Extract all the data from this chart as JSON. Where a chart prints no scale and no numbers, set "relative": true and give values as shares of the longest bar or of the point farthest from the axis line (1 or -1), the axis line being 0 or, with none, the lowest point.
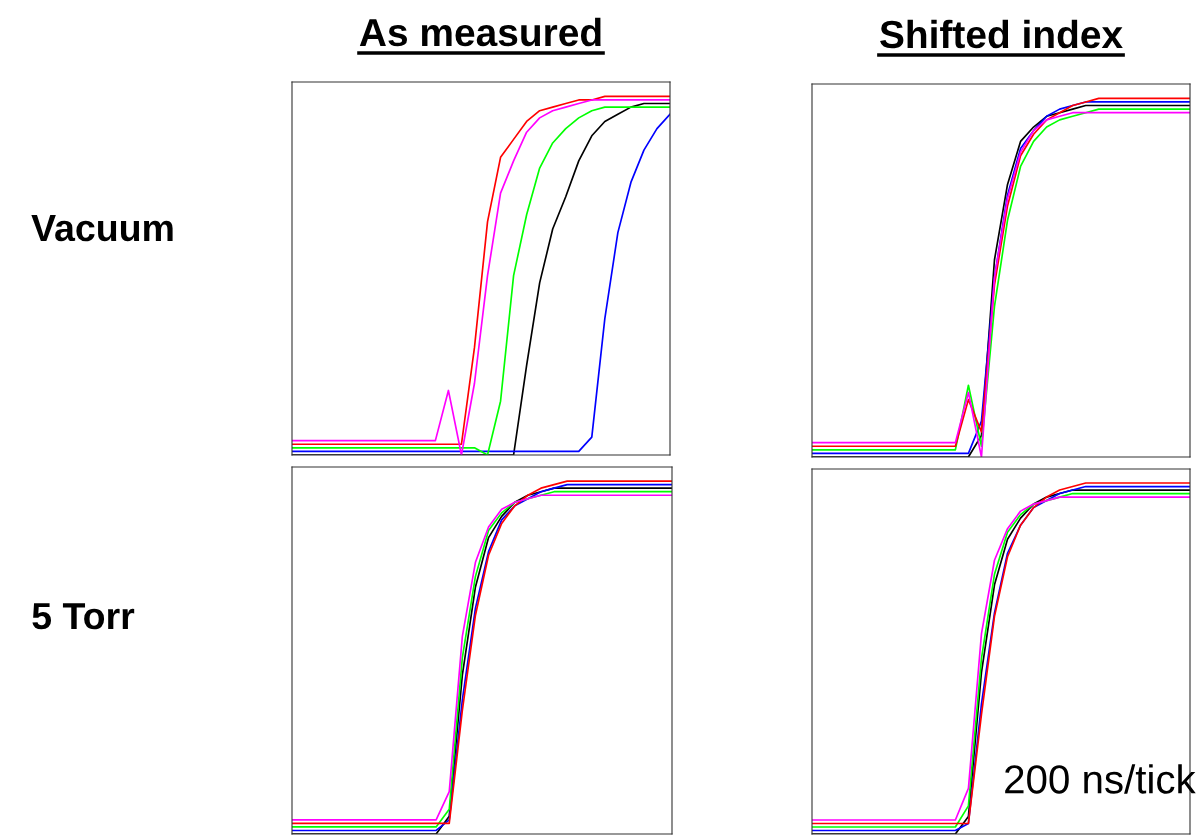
{
  "chart_data": [
    {
      "type": "line",
      "title": "As measured",
      "ylabel": "Vacuum",
      "relative": true,
      "legend": false,
      "grid": false,
      "categories": [
        null,
        null,
        null,
        null,
        null,
        null,
        null,
        null,
        null,
        null,
        null,
        null,
        null,
        null,
        null,
        null,
        null,
        null,
        null,
        null,
        null,
        null,
        null,
        null,
        null,
        null,
        null,
        null,
        null,
        null
      ],
      "series": [
        {
          "color": "#000000",
          "values": [
            0,
            0,
            0,
            0,
            0,
            0,
            0,
            0,
            0,
            0,
            0,
            0,
            0,
            0,
            0,
            0,
            0,
            0,
            0.25,
            0.48,
            0.63,
            0.72,
            0.82,
            0.89,
            0.93,
            0.95,
            0.97,
            0.98,
            0.98,
            0.98
          ]
        },
        {
          "color": "#0000ff",
          "values": [
            0.01,
            0.01,
            0.01,
            0.01,
            0.01,
            0.01,
            0.01,
            0.01,
            0.01,
            0.01,
            0.01,
            0.01,
            0.01,
            0.01,
            0.01,
            0.01,
            0.01,
            0.01,
            0.01,
            0.01,
            0.01,
            0.01,
            0.01,
            0.05,
            0.38,
            0.62,
            0.76,
            0.85,
            0.91,
            0.95
          ]
        },
        {
          "color": "#00ff00",
          "values": [
            0.02,
            0.02,
            0.02,
            0.02,
            0.02,
            0.02,
            0.02,
            0.02,
            0.02,
            0.02,
            0.02,
            0.02,
            0.02,
            0.02,
            0.02,
            0,
            0.15,
            0.5,
            0.67,
            0.8,
            0.87,
            0.91,
            0.94,
            0.96,
            0.97,
            0.97,
            0.97,
            0.97,
            0.97,
            0.97
          ]
        },
        {
          "color": "#ff0000",
          "values": [
            0.03,
            0.03,
            0.03,
            0.03,
            0.03,
            0.03,
            0.03,
            0.03,
            0.03,
            0.03,
            0.03,
            0.03,
            0.03,
            0.03,
            0.3,
            0.65,
            0.83,
            0.88,
            0.93,
            0.96,
            0.97,
            0.98,
            0.99,
            0.99,
            1,
            1,
            1,
            1,
            1,
            1
          ]
        },
        {
          "color": "#ff00ff",
          "values": [
            0.04,
            0.04,
            0.04,
            0.04,
            0.04,
            0.04,
            0.04,
            0.04,
            0.04,
            0.04,
            0.04,
            0.04,
            0.18,
            0,
            0.2,
            0.5,
            0.73,
            0.82,
            0.9,
            0.94,
            0.96,
            0.97,
            0.98,
            0.99,
            0.99,
            0.99,
            0.99,
            0.99,
            0.99,
            0.99
          ]
        }
      ]
    },
    {
      "type": "line",
      "title": "Shifted index",
      "relative": true,
      "legend": false,
      "grid": false,
      "categories": [
        null,
        null,
        null,
        null,
        null,
        null,
        null,
        null,
        null,
        null,
        null,
        null,
        null,
        null,
        null,
        null,
        null,
        null,
        null,
        null,
        null,
        null,
        null,
        null,
        null,
        null,
        null,
        null,
        null,
        null
      ],
      "series": [
        {
          "color": "#000000",
          "values": [
            0,
            0,
            0,
            0,
            0,
            0,
            0,
            0,
            0,
            0,
            0,
            0,
            0,
            0.06,
            0.55,
            0.76,
            0.88,
            0.92,
            0.95,
            0.96,
            0.97,
            0.98,
            0.98,
            0.98,
            0.98,
            0.98,
            0.98,
            0.98,
            0.98,
            0.98
          ]
        },
        {
          "color": "#0000ff",
          "values": [
            0.01,
            0.01,
            0.01,
            0.01,
            0.01,
            0.01,
            0.01,
            0.01,
            0.01,
            0.01,
            0.01,
            0.01,
            0.01,
            0.1,
            0.5,
            0.73,
            0.86,
            0.91,
            0.95,
            0.97,
            0.98,
            0.99,
            0.99,
            0.99,
            0.99,
            0.99,
            0.99,
            0.99,
            0.99,
            0.99
          ]
        },
        {
          "color": "#00ff00",
          "values": [
            0.02,
            0.02,
            0.02,
            0.02,
            0.02,
            0.02,
            0.02,
            0.02,
            0.02,
            0.02,
            0.02,
            0.02,
            0.2,
            0.03,
            0.42,
            0.66,
            0.81,
            0.88,
            0.92,
            0.94,
            0.95,
            0.96,
            0.97,
            0.97,
            0.97,
            0.97,
            0.97,
            0.97,
            0.97,
            0.97
          ]
        },
        {
          "color": "#ff0000",
          "values": [
            0.03,
            0.03,
            0.03,
            0.03,
            0.03,
            0.03,
            0.03,
            0.03,
            0.03,
            0.03,
            0.03,
            0.03,
            0.16,
            0.07,
            0.48,
            0.7,
            0.84,
            0.9,
            0.94,
            0.96,
            0.98,
            0.99,
            1,
            1,
            1,
            1,
            1,
            1,
            1,
            1
          ]
        },
        {
          "color": "#ff00ff",
          "values": [
            0.04,
            0.04,
            0.04,
            0.04,
            0.04,
            0.04,
            0.04,
            0.04,
            0.04,
            0.04,
            0.04,
            0.04,
            0.18,
            0,
            0.5,
            0.72,
            0.85,
            0.91,
            0.94,
            0.95,
            0.96,
            0.96,
            0.96,
            0.96,
            0.96,
            0.96,
            0.96,
            0.96,
            0.96,
            0.96
          ]
        }
      ]
    },
    {
      "type": "line",
      "ylabel": "5 Torr",
      "relative": true,
      "legend": false,
      "grid": false,
      "categories": [
        null,
        null,
        null,
        null,
        null,
        null,
        null,
        null,
        null,
        null,
        null,
        null,
        null,
        null,
        null,
        null,
        null,
        null,
        null,
        null,
        null,
        null,
        null,
        null,
        null,
        null,
        null,
        null,
        null,
        null
      ],
      "series": [
        {
          "color": "#000000",
          "values": [
            0,
            0,
            0,
            0,
            0,
            0,
            0,
            0,
            0,
            0,
            0,
            0,
            0.05,
            0.45,
            0.7,
            0.84,
            0.9,
            0.94,
            0.96,
            0.97,
            0.98,
            0.98,
            0.98,
            0.98,
            0.98,
            0.98,
            0.98,
            0.98,
            0.98,
            0.98
          ]
        },
        {
          "color": "#0000ff",
          "values": [
            0.01,
            0.01,
            0.01,
            0.01,
            0.01,
            0.01,
            0.01,
            0.01,
            0.01,
            0.01,
            0.01,
            0.01,
            0.04,
            0.38,
            0.64,
            0.8,
            0.89,
            0.93,
            0.95,
            0.97,
            0.98,
            0.99,
            0.99,
            0.99,
            0.99,
            0.99,
            0.99,
            0.99,
            0.99,
            0.99
          ]
        },
        {
          "color": "#00ff00",
          "values": [
            0.02,
            0.02,
            0.02,
            0.02,
            0.02,
            0.02,
            0.02,
            0.02,
            0.02,
            0.02,
            0.02,
            0.02,
            0.07,
            0.5,
            0.73,
            0.86,
            0.91,
            0.94,
            0.95,
            0.96,
            0.97,
            0.97,
            0.97,
            0.97,
            0.97,
            0.97,
            0.97,
            0.97,
            0.97,
            0.97
          ]
        },
        {
          "color": "#ff0000",
          "values": [
            0.03,
            0.03,
            0.03,
            0.03,
            0.03,
            0.03,
            0.03,
            0.03,
            0.03,
            0.03,
            0.03,
            0.03,
            0.03,
            0.35,
            0.62,
            0.79,
            0.88,
            0.93,
            0.96,
            0.98,
            0.99,
            1,
            1,
            1,
            1,
            1,
            1,
            1,
            1,
            1
          ]
        },
        {
          "color": "#ff00ff",
          "values": [
            0.04,
            0.04,
            0.04,
            0.04,
            0.04,
            0.04,
            0.04,
            0.04,
            0.04,
            0.04,
            0.04,
            0.04,
            0.12,
            0.56,
            0.77,
            0.87,
            0.92,
            0.94,
            0.95,
            0.96,
            0.96,
            0.96,
            0.96,
            0.96,
            0.96,
            0.96,
            0.96,
            0.96,
            0.96,
            0.96
          ]
        }
      ]
    },
    {
      "type": "line",
      "relative": true,
      "legend": false,
      "grid": false,
      "annotations": [
        "200 ns/tick"
      ],
      "categories": [
        null,
        null,
        null,
        null,
        null,
        null,
        null,
        null,
        null,
        null,
        null,
        null,
        null,
        null,
        null,
        null,
        null,
        null,
        null,
        null,
        null,
        null,
        null,
        null,
        null,
        null,
        null,
        null,
        null,
        null
      ],
      "series": [
        {
          "color": "#000000",
          "values": [
            0,
            0,
            0,
            0,
            0,
            0,
            0,
            0,
            0,
            0,
            0,
            0,
            0.05,
            0.46,
            0.71,
            0.84,
            0.9,
            0.94,
            0.96,
            0.97,
            0.98,
            0.98,
            0.98,
            0.98,
            0.98,
            0.98,
            0.98,
            0.98,
            0.98,
            0.98
          ]
        },
        {
          "color": "#0000ff",
          "values": [
            0.01,
            0.01,
            0.01,
            0.01,
            0.01,
            0.01,
            0.01,
            0.01,
            0.01,
            0.01,
            0.01,
            0.01,
            0.03,
            0.37,
            0.63,
            0.8,
            0.88,
            0.93,
            0.95,
            0.97,
            0.98,
            0.99,
            0.99,
            0.99,
            0.99,
            0.99,
            0.99,
            0.99,
            0.99,
            0.99
          ]
        },
        {
          "color": "#00ff00",
          "values": [
            0.02,
            0.02,
            0.02,
            0.02,
            0.02,
            0.02,
            0.02,
            0.02,
            0.02,
            0.02,
            0.02,
            0.02,
            0.08,
            0.5,
            0.74,
            0.86,
            0.91,
            0.94,
            0.95,
            0.96,
            0.97,
            0.97,
            0.97,
            0.97,
            0.97,
            0.97,
            0.97,
            0.97,
            0.97,
            0.97
          ]
        },
        {
          "color": "#ff0000",
          "values": [
            0.03,
            0.03,
            0.03,
            0.03,
            0.03,
            0.03,
            0.03,
            0.03,
            0.03,
            0.03,
            0.03,
            0.03,
            0.03,
            0.34,
            0.62,
            0.79,
            0.88,
            0.93,
            0.96,
            0.98,
            0.99,
            1,
            1,
            1,
            1,
            1,
            1,
            1,
            1,
            1
          ]
        },
        {
          "color": "#ff00ff",
          "values": [
            0.04,
            0.04,
            0.04,
            0.04,
            0.04,
            0.04,
            0.04,
            0.04,
            0.04,
            0.04,
            0.04,
            0.04,
            0.13,
            0.57,
            0.78,
            0.87,
            0.92,
            0.94,
            0.95,
            0.96,
            0.96,
            0.96,
            0.96,
            0.96,
            0.96,
            0.96,
            0.96,
            0.96,
            0.96,
            0.96
          ]
        }
      ]
    }
  ]
}
